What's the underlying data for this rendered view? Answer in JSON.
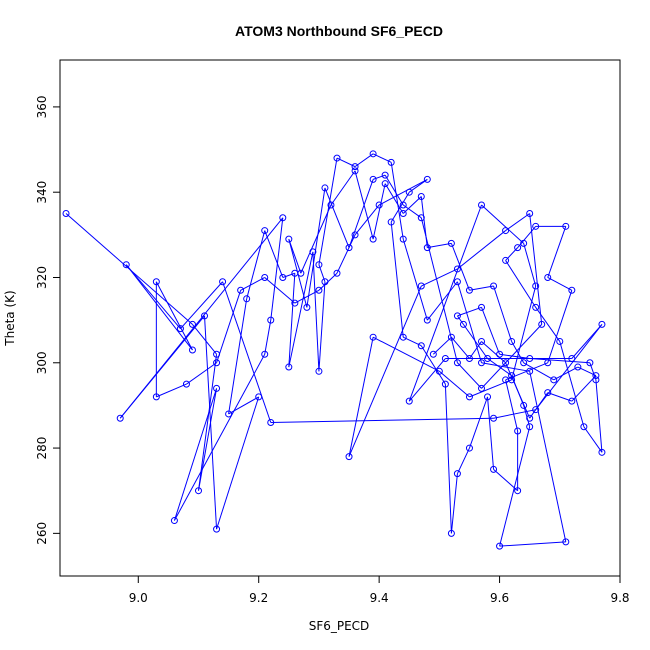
{
  "chart_data": {
    "type": "line",
    "title": "ATOM3 Northbound SF6_PECD",
    "xlabel": "SF6_PECD",
    "ylabel": "Theta (K)",
    "xlim": [
      8.87,
      9.8
    ],
    "ylim": [
      250,
      371
    ],
    "xticks": [
      "9.0",
      "9.2",
      "9.4",
      "9.6",
      "9.8"
    ],
    "yticks": [
      "260",
      "280",
      "300",
      "320",
      "340",
      "360"
    ],
    "grid": false,
    "color": "#0000ff",
    "marker": "open-circle",
    "points": [
      [
        8.88,
        335
      ],
      [
        9.09,
        309
      ],
      [
        9.13,
        302
      ],
      [
        9.1,
        270
      ],
      [
        9.13,
        294
      ],
      [
        9.06,
        263
      ],
      [
        9.21,
        302
      ],
      [
        9.22,
        310
      ],
      [
        9.24,
        334
      ],
      [
        8.97,
        287
      ],
      [
        9.11,
        311
      ],
      [
        9.13,
        261
      ],
      [
        9.2,
        292
      ],
      [
        9.15,
        288
      ],
      [
        9.18,
        315
      ],
      [
        9.21,
        331
      ],
      [
        9.24,
        320
      ],
      [
        9.26,
        321
      ],
      [
        9.25,
        299
      ],
      [
        9.29,
        326
      ],
      [
        9.3,
        298
      ],
      [
        9.31,
        319
      ],
      [
        9.3,
        323
      ],
      [
        9.33,
        348
      ],
      [
        9.36,
        346
      ],
      [
        9.39,
        349
      ],
      [
        9.42,
        347
      ],
      [
        9.44,
        329
      ],
      [
        9.48,
        310
      ],
      [
        9.53,
        319
      ],
      [
        9.57,
        300
      ],
      [
        9.65,
        298
      ],
      [
        9.71,
        258
      ],
      [
        9.6,
        257
      ],
      [
        9.65,
        285
      ],
      [
        9.64,
        290
      ],
      [
        9.62,
        297
      ],
      [
        9.58,
        301
      ],
      [
        9.54,
        309
      ],
      [
        9.53,
        311
      ],
      [
        9.57,
        313
      ],
      [
        9.6,
        302
      ],
      [
        9.65,
        301
      ],
      [
        9.75,
        300
      ],
      [
        9.76,
        296
      ],
      [
        9.77,
        279
      ],
      [
        9.74,
        285
      ],
      [
        9.7,
        305
      ],
      [
        9.66,
        313
      ],
      [
        9.61,
        324
      ],
      [
        9.63,
        327
      ],
      [
        9.66,
        332
      ],
      [
        9.71,
        332
      ],
      [
        9.68,
        320
      ],
      [
        9.72,
        317
      ],
      [
        9.68,
        300
      ],
      [
        9.61,
        296
      ],
      [
        9.63,
        284
      ],
      [
        9.63,
        270
      ],
      [
        9.59,
        275
      ],
      [
        9.58,
        292
      ],
      [
        9.55,
        280
      ],
      [
        9.53,
        274
      ],
      [
        9.52,
        260
      ],
      [
        9.51,
        295
      ],
      [
        9.47,
        304
      ],
      [
        9.44,
        306
      ],
      [
        9.42,
        333
      ],
      [
        9.45,
        340
      ],
      [
        9.48,
        343
      ],
      [
        9.4,
        337
      ],
      [
        9.36,
        330
      ],
      [
        9.33,
        321
      ],
      [
        9.3,
        317
      ],
      [
        9.26,
        314
      ],
      [
        9.21,
        320
      ],
      [
        9.17,
        317
      ],
      [
        9.13,
        300
      ],
      [
        9.08,
        295
      ],
      [
        9.03,
        292
      ],
      [
        9.03,
        319
      ],
      [
        9.09,
        303
      ],
      [
        8.98,
        323
      ],
      [
        9.07,
        308
      ],
      [
        9.14,
        319
      ],
      [
        9.22,
        286
      ],
      [
        9.59,
        287
      ],
      [
        9.66,
        289
      ],
      [
        9.77,
        309
      ],
      [
        9.72,
        301
      ],
      [
        9.51,
        301
      ],
      [
        9.45,
        291
      ],
      [
        9.57,
        337
      ],
      [
        9.64,
        328
      ],
      [
        9.66,
        318
      ],
      [
        9.62,
        296
      ],
      [
        9.55,
        292
      ],
      [
        9.5,
        298
      ],
      [
        9.39,
        306
      ],
      [
        9.35,
        278
      ],
      [
        9.47,
        318
      ],
      [
        9.53,
        322
      ],
      [
        9.61,
        331
      ],
      [
        9.65,
        335
      ],
      [
        9.67,
        309
      ],
      [
        9.57,
        294
      ],
      [
        9.53,
        300
      ],
      [
        9.47,
        334
      ],
      [
        9.44,
        337
      ],
      [
        9.41,
        344
      ],
      [
        9.39,
        343
      ],
      [
        9.35,
        327
      ],
      [
        9.31,
        341
      ],
      [
        9.28,
        313
      ],
      [
        9.25,
        329
      ],
      [
        9.27,
        321
      ],
      [
        9.32,
        337
      ],
      [
        9.36,
        345
      ],
      [
        9.39,
        329
      ],
      [
        9.41,
        342
      ],
      [
        9.44,
        335
      ],
      [
        9.47,
        339
      ],
      [
        9.48,
        327
      ],
      [
        9.52,
        328
      ],
      [
        9.55,
        317
      ],
      [
        9.59,
        318
      ],
      [
        9.62,
        305
      ],
      [
        9.64,
        300
      ],
      [
        9.69,
        296
      ],
      [
        9.73,
        299
      ],
      [
        9.76,
        297
      ],
      [
        9.72,
        291
      ],
      [
        9.68,
        293
      ],
      [
        9.65,
        287
      ],
      [
        9.61,
        300
      ],
      [
        9.57,
        305
      ],
      [
        9.55,
        301
      ],
      [
        9.52,
        306
      ],
      [
        9.49,
        302
      ]
    ]
  }
}
